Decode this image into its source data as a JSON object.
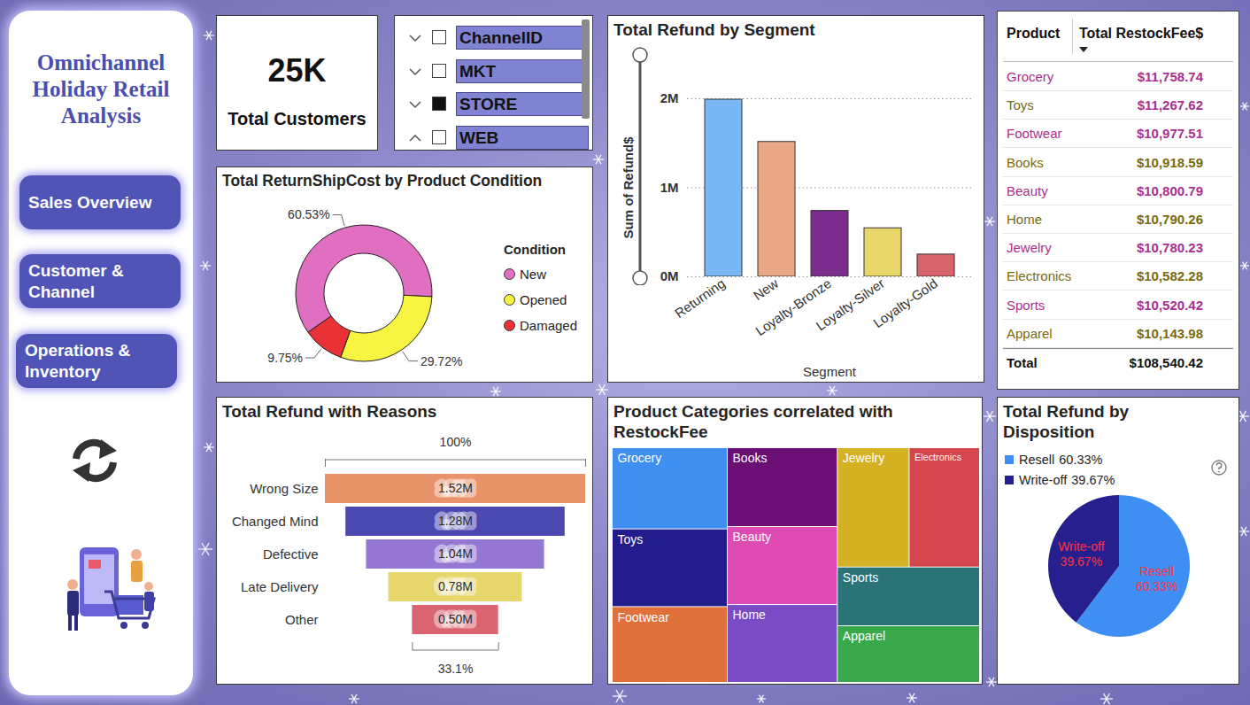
{
  "sidebar": {
    "title": "Omnichannel Holiday Retail Analysis",
    "buttons": [
      "Sales Overview",
      "Customer & Channel",
      "Operations & Inventory"
    ]
  },
  "kpi": {
    "value": "25K",
    "label": "Total Customers"
  },
  "slicer": {
    "items": [
      {
        "label": "ChannelID",
        "checked": false
      },
      {
        "label": "MKT",
        "checked": false
      },
      {
        "label": "STORE",
        "checked": true
      },
      {
        "label": "WEB",
        "checked": false
      }
    ]
  },
  "table": {
    "columns": [
      "Product",
      "Total RestockFee$"
    ],
    "rows": [
      [
        "Grocery",
        "$11,758.74"
      ],
      [
        "Toys",
        "$11,267.62"
      ],
      [
        "Footwear",
        "$10,977.51"
      ],
      [
        "Books",
        "$10,918.59"
      ],
      [
        "Beauty",
        "$10,800.79"
      ],
      [
        "Home",
        "$10,790.26"
      ],
      [
        "Jewelry",
        "$10,780.23"
      ],
      [
        "Electronics",
        "$10,582.28"
      ],
      [
        "Sports",
        "$10,520.42"
      ],
      [
        "Apparel",
        "$10,143.98"
      ]
    ],
    "total": [
      "Total",
      "$108,540.42"
    ]
  },
  "chart_data": [
    {
      "type": "donut",
      "title": "Total ReturnShipCost by Product Condition",
      "categories": [
        "New",
        "Opened",
        "Damaged"
      ],
      "values": [
        60.53,
        29.72,
        9.75
      ],
      "value_labels": [
        "60.53%",
        "29.72%",
        "9.75%"
      ],
      "colors": [
        "#e06fc1",
        "#f7f542",
        "#e83236"
      ],
      "legend_title": "Condition",
      "legend": "right",
      "data_labels": true
    },
    {
      "type": "bar",
      "title": "Total Refund by Segment",
      "x_label": "Segment",
      "y_label": "Sum of Refund$",
      "categories": [
        "Returning",
        "New",
        "Loyalty-Bronze",
        "Loyalty-Silver",
        "Loyalty-Gold"
      ],
      "values": [
        1990000,
        1515000,
        740000,
        545000,
        250000
      ],
      "colors": [
        "#7ab8f5",
        "#eaa888",
        "#7a2d8c",
        "#e8d66a",
        "#d9636c"
      ],
      "ylim": [
        0,
        2000000
      ],
      "yticks": [
        {
          "value": 0,
          "label": "0M"
        },
        {
          "value": 1000000,
          "label": "1M"
        },
        {
          "value": 2000000,
          "label": "2M"
        }
      ],
      "grid": true
    },
    {
      "type": "funnel",
      "title": "Total Refund with Reasons",
      "categories": [
        "Wrong Size",
        "Changed Mind",
        "Defective",
        "Late Delivery",
        "Other"
      ],
      "values": [
        1520000,
        1280000,
        1040000,
        780000,
        503000
      ],
      "value_labels": [
        "1.52M",
        "1.28M",
        "1.04M",
        "0.78M",
        "0.50M"
      ],
      "colors": [
        "#e9936a",
        "#4b49b0",
        "#9477d2",
        "#e6d66c",
        "#da6470"
      ],
      "orientation": "horizontal",
      "data_labels": true,
      "tick_labels": "y",
      "annotations": [
        "100%",
        "33.1%"
      ]
    },
    {
      "type": "treemap",
      "title": "Product Categories correlated with RestockFee",
      "categories": [
        "Grocery",
        "Toys",
        "Footwear",
        "Books",
        "Beauty",
        "Home",
        "Jewelry",
        "Electronics",
        "Sports",
        "Apparel"
      ],
      "values": [
        11758.74,
        11267.62,
        10977.51,
        10918.59,
        10800.79,
        10790.26,
        10780.23,
        10582.28,
        10520.42,
        10143.98
      ],
      "colors": [
        "#3f8ef0",
        "#231c8c",
        "#e0713a",
        "#6a0f73",
        "#dd4bb3",
        "#7a4cc3",
        "#d5b124",
        "#d6464f",
        "#2a7377",
        "#38a84a"
      ]
    },
    {
      "type": "pie",
      "title": "Total Refund by Disposition",
      "categories": [
        "Resell",
        "Write-off"
      ],
      "values": [
        60.33,
        39.67
      ],
      "value_labels": [
        "60.33%",
        "39.67%"
      ],
      "colors": [
        "#3f8ef3",
        "#25208e"
      ],
      "legend": "top left",
      "data_labels": true
    }
  ]
}
